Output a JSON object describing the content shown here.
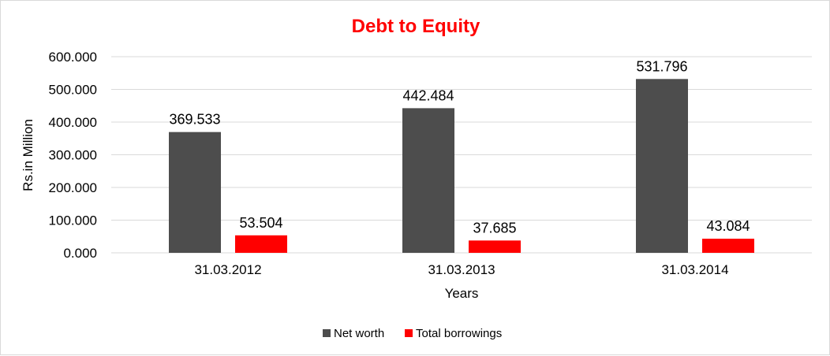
{
  "colors": {
    "title": "#ff0000",
    "net_worth": "#4d4d4d",
    "total_borrowings": "#ff0000",
    "gridline": "#d9d9d9"
  },
  "chart_data": {
    "type": "bar",
    "title": "Debt to Equity",
    "xlabel": "Years",
    "ylabel": "Rs.in Million",
    "ylim": [
      0,
      600
    ],
    "y_ticks": [
      "0.000",
      "100.000",
      "200.000",
      "300.000",
      "400.000",
      "500.000",
      "600.000"
    ],
    "grid": true,
    "legend_position": "bottom",
    "categories": [
      "31.03.2012",
      "31.03.2013",
      "31.03.2014"
    ],
    "series": [
      {
        "name": "Net worth",
        "color_key": "net_worth",
        "values": [
          369.533,
          442.484,
          531.796
        ],
        "labels": [
          "369.533",
          "442.484",
          "531.796"
        ]
      },
      {
        "name": "Total borrowings",
        "color_key": "total_borrowings",
        "values": [
          53.504,
          37.685,
          43.084
        ],
        "labels": [
          "53.504",
          "37.685",
          "43.084"
        ]
      }
    ]
  }
}
